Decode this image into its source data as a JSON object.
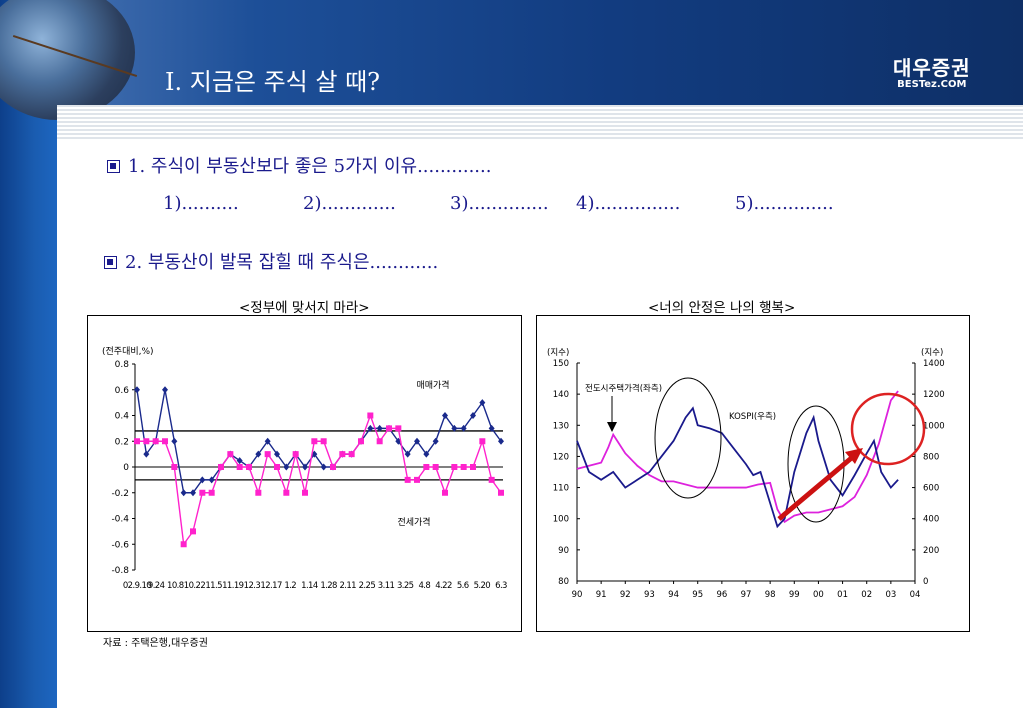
{
  "header": {
    "title": "I. 지금은 주식 살 때?",
    "logo_main": "대우증권",
    "logo_sub": "BESTez.COM"
  },
  "points": {
    "p1": "1. 주식이 부동산보다 좋은 5가지 이유.............",
    "reasons": [
      "1)..........",
      "2).............",
      "3)..............",
      "4)...............",
      "5).............."
    ],
    "p2": "2. 부동산이 발목 잡힐 때 주식은............"
  },
  "source": "자료 : 주택은행,대우증권",
  "chart_data": [
    {
      "type": "line",
      "title": "<정부에 맞서지 마라>",
      "ylabel": "(전주대비,%)",
      "ylim": [
        -0.8,
        0.8
      ],
      "yticks": [
        "0.8",
        "0.6",
        "0.4",
        "0.2",
        "0",
        "-0.2",
        "-0.4",
        "-0.6",
        "-0.8"
      ],
      "x_tick_labels": [
        "02.9.10",
        "9.24",
        "10.8",
        "10.22",
        "11.5",
        "11.19",
        "12.3",
        "12.17",
        "1.2",
        "1.14",
        "1.28",
        "2.11",
        "2.25",
        "3.11",
        "3.25",
        "4.8",
        "4.22",
        "5.6",
        "5.20",
        "6.3"
      ],
      "reference_lines": [
        0.28,
        -0.1
      ],
      "series": [
        {
          "name": "매매가격",
          "color": "#1a2a8c",
          "marker": "diamond",
          "values": [
            0.6,
            0.1,
            0.2,
            0.6,
            0.2,
            -0.2,
            -0.2,
            -0.1,
            -0.1,
            0,
            0.1,
            0.05,
            0,
            0.1,
            0.2,
            0.1,
            0,
            0.1,
            0,
            0.1,
            0,
            0,
            0.1,
            0.1,
            0.2,
            0.3,
            0.3,
            0.3,
            0.2,
            0.1,
            0.2,
            0.1,
            0.2,
            0.4,
            0.3,
            0.3,
            0.4,
            0.5,
            0.3,
            0.2
          ]
        },
        {
          "name": "전세가격",
          "color": "#ff22cc",
          "marker": "square",
          "values": [
            0.2,
            0.2,
            0.2,
            0.2,
            0,
            -0.6,
            -0.5,
            -0.2,
            -0.2,
            0,
            0.1,
            0,
            0,
            -0.2,
            0.1,
            0,
            -0.2,
            0.1,
            -0.2,
            0.2,
            0.2,
            0,
            0.1,
            0.1,
            0.2,
            0.4,
            0.2,
            0.3,
            0.3,
            -0.1,
            -0.1,
            0,
            0,
            -0.2,
            0,
            0,
            0,
            0.2,
            -0.1,
            -0.2
          ]
        }
      ]
    },
    {
      "type": "line",
      "title": "<너의 안정은  나의 행복>",
      "ylabel_left": "(지수)",
      "ylabel_right": "(지수)",
      "ylim_left": [
        80,
        150
      ],
      "ylim_right": [
        0,
        1400
      ],
      "yticks_left": [
        "150",
        "140",
        "130",
        "120",
        "110",
        "100",
        "90",
        "80"
      ],
      "yticks_right": [
        "1400",
        "1200",
        "1000",
        "800",
        "600",
        "400",
        "200",
        "0"
      ],
      "x_tick_labels": [
        "90",
        "91",
        "92",
        "93",
        "94",
        "95",
        "96",
        "97",
        "98",
        "99",
        "00",
        "01",
        "02",
        "03",
        "04"
      ],
      "annotations": [
        "전도시주택가격(좌측)",
        "KOSPI(우측)"
      ],
      "series": [
        {
          "name": "전도시주택가격(좌측)",
          "axis": "left",
          "color": "#dd22dd",
          "points": [
            [
              90,
              116
            ],
            [
              90.5,
              117
            ],
            [
              91,
              118
            ],
            [
              91.3,
              123
            ],
            [
              91.5,
              127
            ],
            [
              92,
              121
            ],
            [
              92.5,
              117
            ],
            [
              93,
              114
            ],
            [
              93.5,
              112
            ],
            [
              94,
              112
            ],
            [
              95,
              110
            ],
            [
              96,
              110
            ],
            [
              97,
              110
            ],
            [
              97.5,
              111
            ],
            [
              98,
              111.5
            ],
            [
              98.3,
              103
            ],
            [
              98.6,
              99
            ],
            [
              99,
              101
            ],
            [
              99.5,
              102
            ],
            [
              100,
              102
            ],
            [
              100.5,
              103
            ],
            [
              101,
              104
            ],
            [
              101.5,
              107
            ],
            [
              102,
              114
            ],
            [
              102.5,
              124
            ],
            [
              103,
              138
            ],
            [
              103.3,
              141
            ]
          ]
        },
        {
          "name": "KOSPI(우측)",
          "axis": "right",
          "color": "#1a1a8c",
          "points": [
            [
              90,
              900
            ],
            [
              90.5,
              700
            ],
            [
              91,
              650
            ],
            [
              91.5,
              700
            ],
            [
              92,
              600
            ],
            [
              92.5,
              650
            ],
            [
              93,
              700
            ],
            [
              93.5,
              800
            ],
            [
              94,
              900
            ],
            [
              94.5,
              1050
            ],
            [
              94.8,
              1110
            ],
            [
              95,
              1000
            ],
            [
              95.5,
              980
            ],
            [
              96,
              950
            ],
            [
              96.5,
              850
            ],
            [
              97,
              750
            ],
            [
              97.3,
              680
            ],
            [
              97.6,
              700
            ],
            [
              98,
              500
            ],
            [
              98.3,
              350
            ],
            [
              98.6,
              400
            ],
            [
              99,
              700
            ],
            [
              99.5,
              950
            ],
            [
              99.8,
              1050
            ],
            [
              100,
              900
            ],
            [
              100.5,
              650
            ],
            [
              101,
              550
            ],
            [
              101.5,
              680
            ],
            [
              102,
              820
            ],
            [
              102.3,
              900
            ],
            [
              102.6,
              700
            ],
            [
              103,
              600
            ],
            [
              103.3,
              650
            ]
          ]
        }
      ]
    }
  ],
  "colors": {
    "header_dark": "#0e2f66",
    "text_blue": "#1a1a8c",
    "highlight_red": "#dd2222"
  }
}
